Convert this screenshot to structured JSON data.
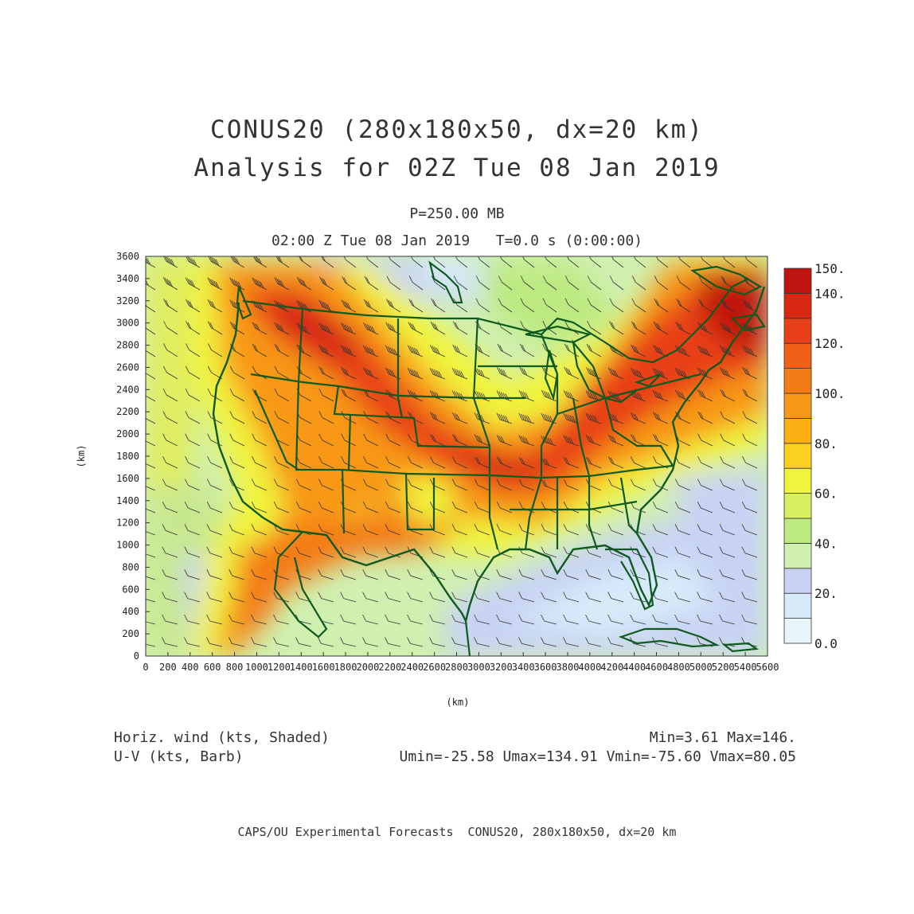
{
  "title": {
    "line1": "CONUS20 (280x180x50, dx=20 km)",
    "line2": "Analysis for 02Z Tue 08 Jan 2019"
  },
  "level": "P=250.00 MB",
  "valid_time": "02:00 Z Tue 08 Jan 2019   T=0.0 s (0:00:00)",
  "axes": {
    "x_label": "(km)",
    "y_label": "(km)",
    "x_ticks": [
      "0",
      "200",
      "400",
      "600",
      "800",
      "1000",
      "1200",
      "1400",
      "1600",
      "1800",
      "2000",
      "2200",
      "2400",
      "2600",
      "2800",
      "3000",
      "3200",
      "3400",
      "3600",
      "3800",
      "4000",
      "4200",
      "4400",
      "4600",
      "4800",
      "5000",
      "5200",
      "5400",
      "5600"
    ],
    "y_ticks": [
      "0",
      "200",
      "400",
      "600",
      "800",
      "1000",
      "1200",
      "1400",
      "1600",
      "1800",
      "2000",
      "2200",
      "2400",
      "2600",
      "2800",
      "3000",
      "3200",
      "3400",
      "3600"
    ],
    "x_range": [
      0,
      5600
    ],
    "y_range": [
      0,
      3600
    ]
  },
  "colorbar": {
    "labels": [
      "150.",
      "140.",
      "120.",
      "100.",
      "80.",
      "60.",
      "40.",
      "20.",
      "0.0"
    ],
    "levels": [
      0,
      10,
      20,
      30,
      40,
      50,
      60,
      70,
      80,
      90,
      100,
      110,
      120,
      130,
      140,
      150
    ],
    "colors": [
      "#e8f6fc",
      "#d7eaf9",
      "#c8d3f4",
      "#d0f0b0",
      "#bcea80",
      "#d8f060",
      "#f0f43c",
      "#fcd020",
      "#fcb014",
      "#f89818",
      "#f47c18",
      "#f06018",
      "#e84018",
      "#d82814",
      "#c01410"
    ]
  },
  "footer": {
    "field": "Horiz. wind (kts, Shaded)",
    "barb": "U-V (kts, Barb)",
    "minmax": "Min=3.61 Max=146.",
    "uv_minmax": "Umin=-25.58 Umax=134.91 Vmin=-75.60 Vmax=80.05"
  },
  "credit": "CAPS/OU Experimental Forecasts  CONUS20, 280x180x50, dx=20 km",
  "colors": {
    "border": "#0f5a1e",
    "barb": "#333333"
  },
  "field_stats": {
    "min": 3.61,
    "max": 146
  }
}
